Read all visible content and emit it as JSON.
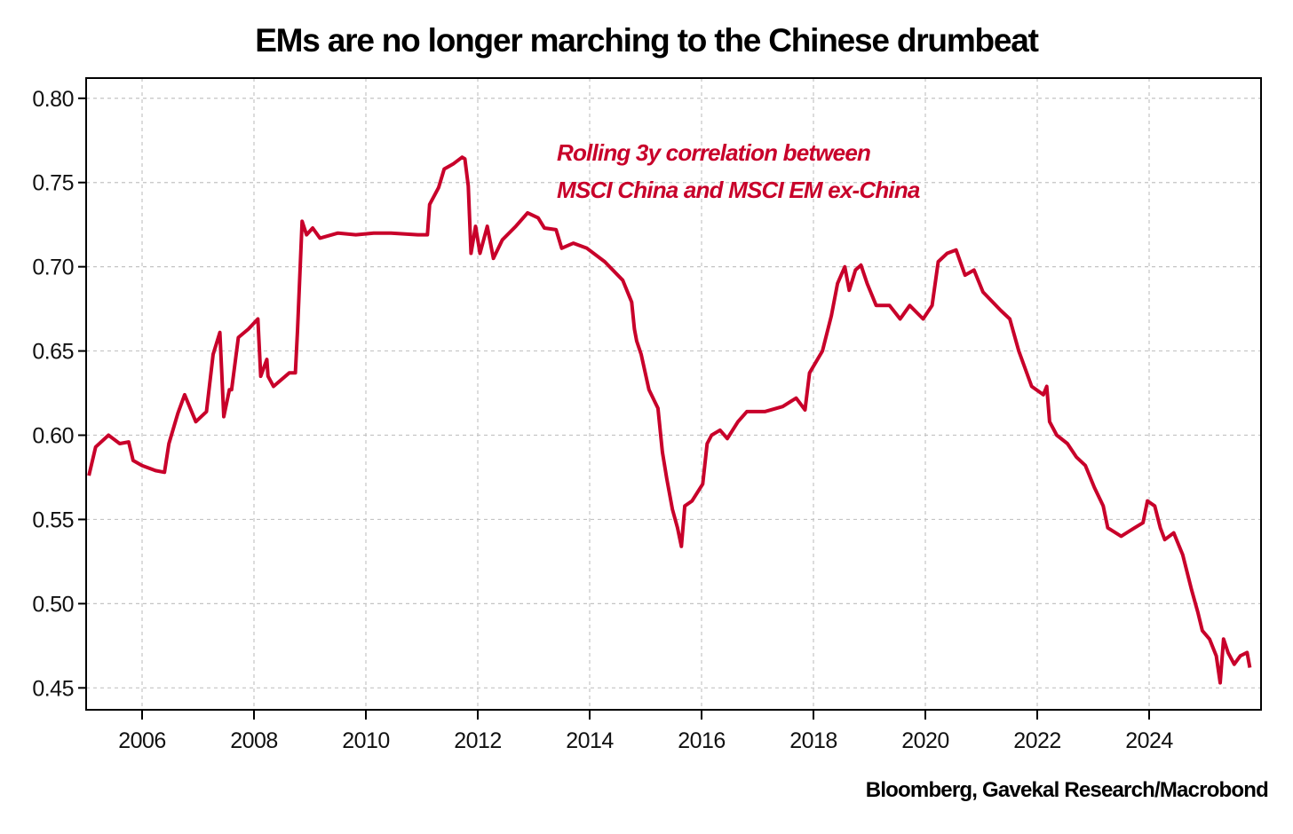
{
  "chart_data": {
    "type": "line",
    "title": "EMs are no longer marching to the Chinese drumbeat",
    "xlabel": "",
    "ylabel": "",
    "xlim": [
      2005.0,
      2026.0
    ],
    "ylim": [
      0.437,
      0.812
    ],
    "x_ticks": [
      2006,
      2008,
      2010,
      2012,
      2014,
      2016,
      2018,
      2020,
      2022,
      2024
    ],
    "x_tick_labels": [
      "2006",
      "2008",
      "2010",
      "2012",
      "2014",
      "2016",
      "2018",
      "2020",
      "2022",
      "2024"
    ],
    "y_ticks": [
      0.45,
      0.5,
      0.55,
      0.6,
      0.65,
      0.7,
      0.75,
      0.8
    ],
    "y_tick_labels": [
      "0.45",
      "0.50",
      "0.55",
      "0.60",
      "0.65",
      "0.70",
      "0.75",
      "0.80"
    ],
    "grid": true,
    "annotation": [
      "Rolling 3y correlation between",
      "MSCI China and MSCI EM ex-China"
    ],
    "source": "Bloomberg, Gavekal Research/Macrobond",
    "series": [
      {
        "name": "Rolling 3y correlation between MSCI China and MSCI EM ex-China",
        "color": "#c8002a",
        "x": [
          2005.05,
          2005.17,
          2005.4,
          2005.6,
          2005.76,
          2005.84,
          2006.0,
          2006.24,
          2006.4,
          2006.48,
          2006.64,
          2006.76,
          2006.96,
          2007.15,
          2007.27,
          2007.39,
          2007.46,
          2007.56,
          2007.6,
          2007.72,
          2007.9,
          2008.07,
          2008.12,
          2008.23,
          2008.25,
          2008.35,
          2008.63,
          2008.74,
          2008.78,
          2008.86,
          2008.94,
          2009.05,
          2009.18,
          2009.5,
          2009.82,
          2010.14,
          2010.45,
          2010.93,
          2011.1,
          2011.14,
          2011.3,
          2011.4,
          2011.56,
          2011.72,
          2011.77,
          2011.83,
          2011.88,
          2011.96,
          2012.04,
          2012.17,
          2012.28,
          2012.44,
          2012.68,
          2012.89,
          2013.08,
          2013.19,
          2013.4,
          2013.5,
          2013.71,
          2013.95,
          2014.27,
          2014.59,
          2014.75,
          2014.8,
          2014.84,
          2014.92,
          2015.06,
          2015.22,
          2015.3,
          2015.38,
          2015.48,
          2015.57,
          2015.64,
          2015.7,
          2015.83,
          2016.02,
          2016.1,
          2016.18,
          2016.33,
          2016.46,
          2016.65,
          2016.81,
          2017.13,
          2017.45,
          2017.69,
          2017.85,
          2017.93,
          2018.16,
          2018.32,
          2018.43,
          2018.56,
          2018.64,
          2018.75,
          2018.85,
          2018.96,
          2019.12,
          2019.36,
          2019.55,
          2019.72,
          2019.96,
          2020.12,
          2020.23,
          2020.39,
          2020.55,
          2020.71,
          2020.87,
          2021.03,
          2021.35,
          2021.51,
          2021.67,
          2021.9,
          2022.11,
          2022.17,
          2022.22,
          2022.35,
          2022.54,
          2022.7,
          2022.86,
          2023.02,
          2023.18,
          2023.26,
          2023.5,
          2023.74,
          2023.89,
          2023.97,
          2024.1,
          2024.2,
          2024.28,
          2024.44,
          2024.6,
          2024.76,
          2024.87,
          2024.95,
          2025.08,
          2025.2,
          2025.27,
          2025.33,
          2025.41,
          2025.52,
          2025.63,
          2025.75,
          2025.8
        ],
        "values": [
          0.576,
          0.593,
          0.6,
          0.595,
          0.596,
          0.585,
          0.582,
          0.579,
          0.578,
          0.595,
          0.613,
          0.624,
          0.608,
          0.614,
          0.648,
          0.661,
          0.611,
          0.627,
          0.627,
          0.658,
          0.663,
          0.669,
          0.635,
          0.645,
          0.635,
          0.629,
          0.637,
          0.637,
          0.663,
          0.727,
          0.719,
          0.723,
          0.717,
          0.72,
          0.719,
          0.72,
          0.72,
          0.719,
          0.719,
          0.737,
          0.747,
          0.758,
          0.761,
          0.765,
          0.764,
          0.748,
          0.708,
          0.724,
          0.708,
          0.724,
          0.705,
          0.716,
          0.724,
          0.732,
          0.729,
          0.723,
          0.722,
          0.711,
          0.714,
          0.711,
          0.703,
          0.692,
          0.679,
          0.663,
          0.656,
          0.648,
          0.627,
          0.616,
          0.59,
          0.574,
          0.556,
          0.545,
          0.534,
          0.558,
          0.561,
          0.571,
          0.595,
          0.6,
          0.603,
          0.598,
          0.608,
          0.614,
          0.614,
          0.617,
          0.622,
          0.615,
          0.637,
          0.65,
          0.671,
          0.69,
          0.7,
          0.686,
          0.698,
          0.701,
          0.69,
          0.677,
          0.677,
          0.669,
          0.677,
          0.669,
          0.677,
          0.703,
          0.708,
          0.71,
          0.695,
          0.698,
          0.685,
          0.674,
          0.669,
          0.65,
          0.629,
          0.624,
          0.629,
          0.608,
          0.6,
          0.595,
          0.587,
          0.582,
          0.569,
          0.558,
          0.545,
          0.54,
          0.545,
          0.548,
          0.561,
          0.558,
          0.545,
          0.538,
          0.542,
          0.529,
          0.508,
          0.495,
          0.484,
          0.479,
          0.469,
          0.453,
          0.479,
          0.471,
          0.464,
          0.469,
          0.471,
          0.462
        ]
      }
    ]
  }
}
